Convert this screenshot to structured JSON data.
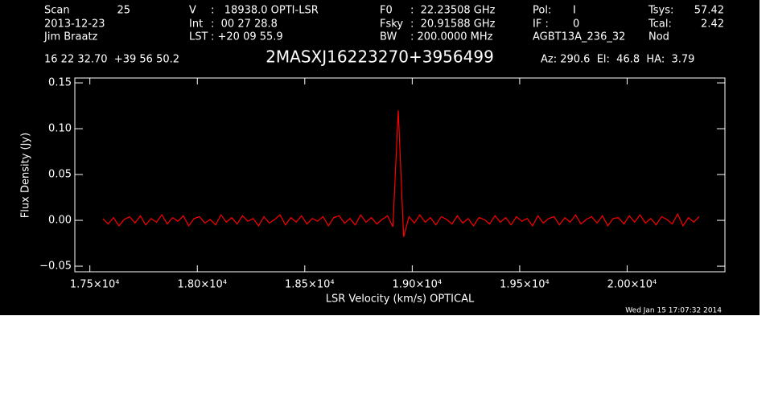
{
  "header": {
    "columns": [
      [
        {
          "label": "Scan",
          "value": "25"
        },
        {
          "label": "2013-12-23"
        },
        {
          "label": "Jim Braatz"
        }
      ],
      [
        {
          "label": "V",
          "value": ":   18938.0 OPTI-LSR"
        },
        {
          "label": "Int",
          "value": ":  00 27 28.8"
        },
        {
          "label": "LST",
          "value": ": +20 09 55.9"
        }
      ],
      [
        {
          "label": "F0",
          "value": ":  22.23508 GHz"
        },
        {
          "label": "Fsky",
          "value": ":  20.91588 GHz"
        },
        {
          "label": "BW",
          "value": ": 200.0000 MHz"
        }
      ],
      [
        {
          "label": "Pol:",
          "value": "I"
        },
        {
          "label": "IF :",
          "value": "0"
        },
        {
          "label": "AGBT13A_236_32"
        }
      ],
      [
        {
          "label": "Tsys:",
          "value": "57.42"
        },
        {
          "label": "Tcal:",
          "value": "2.42"
        },
        {
          "label": "Nod"
        }
      ]
    ],
    "coordinates": "16 22 32.70  +39 56 50.2",
    "pointing": "Az: 290.6  El:  46.8  HA:  3.79",
    "date": "Wed Jan 15 17:07:32 2014"
  },
  "chart_data": {
    "type": "line",
    "title": "2MASXJ16223270+3956499",
    "x_label": "LSR Velocity (km/s) OPTICAL",
    "y_label": "Flux Density (Jy)",
    "xlim": [
      17430,
      20455
    ],
    "ylim": [
      -0.0561,
      0.1553
    ],
    "xticks": [
      {
        "value": 17500,
        "label": "1.75×10⁴"
      },
      {
        "value": 18000,
        "label": "1.80×10⁴"
      },
      {
        "value": 18500,
        "label": "1.85×10⁴"
      },
      {
        "value": 19000,
        "label": "1.90×10⁴"
      },
      {
        "value": 19500,
        "label": "1.95×10⁴"
      },
      {
        "value": 20000,
        "label": "2.00×10⁴"
      }
    ],
    "yticks": [
      {
        "value": -0.05,
        "label": "−0.05"
      },
      {
        "value": 0,
        "label": "0.00"
      },
      0.05,
      {
        "value": 0.1,
        "label": "0.10"
      },
      0.15
    ],
    "x": [
      17560,
      17585,
      17610,
      17635,
      17660,
      17685,
      17710,
      17735,
      17760,
      17785,
      17810,
      17835,
      17860,
      17885,
      17910,
      17935,
      17960,
      17985,
      18010,
      18035,
      18060,
      18085,
      18110,
      18135,
      18160,
      18185,
      18210,
      18235,
      18260,
      18285,
      18310,
      18335,
      18360,
      18385,
      18410,
      18435,
      18460,
      18485,
      18510,
      18535,
      18560,
      18585,
      18610,
      18635,
      18660,
      18685,
      18710,
      18735,
      18760,
      18785,
      18810,
      18835,
      18860,
      18885,
      18910,
      18935,
      18960,
      18985,
      19010,
      19035,
      19060,
      19085,
      19110,
      19135,
      19160,
      19185,
      19210,
      19235,
      19260,
      19285,
      19310,
      19335,
      19360,
      19385,
      19410,
      19435,
      19460,
      19485,
      19510,
      19535,
      19560,
      19585,
      19610,
      19635,
      19660,
      19685,
      19710,
      19735,
      19760,
      19785,
      19810,
      19835,
      19860,
      19885,
      19910,
      19935,
      19960,
      19985,
      20010,
      20035,
      20060,
      20085,
      20110,
      20135,
      20160,
      20185,
      20210,
      20235,
      20260,
      20285,
      20310,
      20335
    ],
    "series": [
      {
        "color": "#ff0000",
        "values": [
          0.002,
          -0.004,
          0.003,
          -0.006,
          0.001,
          0.004,
          -0.003,
          0.005,
          -0.005,
          0.002,
          -0.002,
          0.006,
          -0.004,
          0.003,
          -0.001,
          0.005,
          -0.006,
          0.002,
          0.004,
          -0.003,
          0.001,
          -0.005,
          0.006,
          -0.002,
          0.003,
          -0.004,
          0.005,
          -0.001,
          0.002,
          -0.006,
          0.004,
          -0.003,
          0.001,
          0.006,
          -0.005,
          0.003,
          -0.002,
          0.005,
          -0.004,
          0.002,
          -0.001,
          0.004,
          -0.006,
          0.003,
          0.005,
          -0.003,
          0.002,
          -0.005,
          0.006,
          -0.002,
          0.003,
          -0.004,
          0.001,
          0.005,
          -0.007,
          0.12,
          -0.018,
          0.004,
          -0.003,
          0.006,
          -0.002,
          0.003,
          -0.005,
          0.004,
          0.001,
          -0.004,
          0.005,
          -0.003,
          0.002,
          -0.006,
          0.003,
          0.001,
          -0.004,
          0.005,
          -0.002,
          0.003,
          -0.005,
          0.004,
          -0.001,
          0.002,
          -0.006,
          0.005,
          -0.003,
          0.002,
          0.004,
          -0.005,
          0.003,
          -0.002,
          0.006,
          -0.004,
          0.001,
          0.004,
          -0.003,
          0.005,
          -0.006,
          0.002,
          0.003,
          -0.004,
          0.005,
          -0.002,
          0.006,
          -0.003,
          0.002,
          -0.005,
          0.004,
          0.001,
          -0.004,
          0.007,
          -0.006,
          0.003,
          -0.002,
          0.004
        ]
      }
    ]
  }
}
